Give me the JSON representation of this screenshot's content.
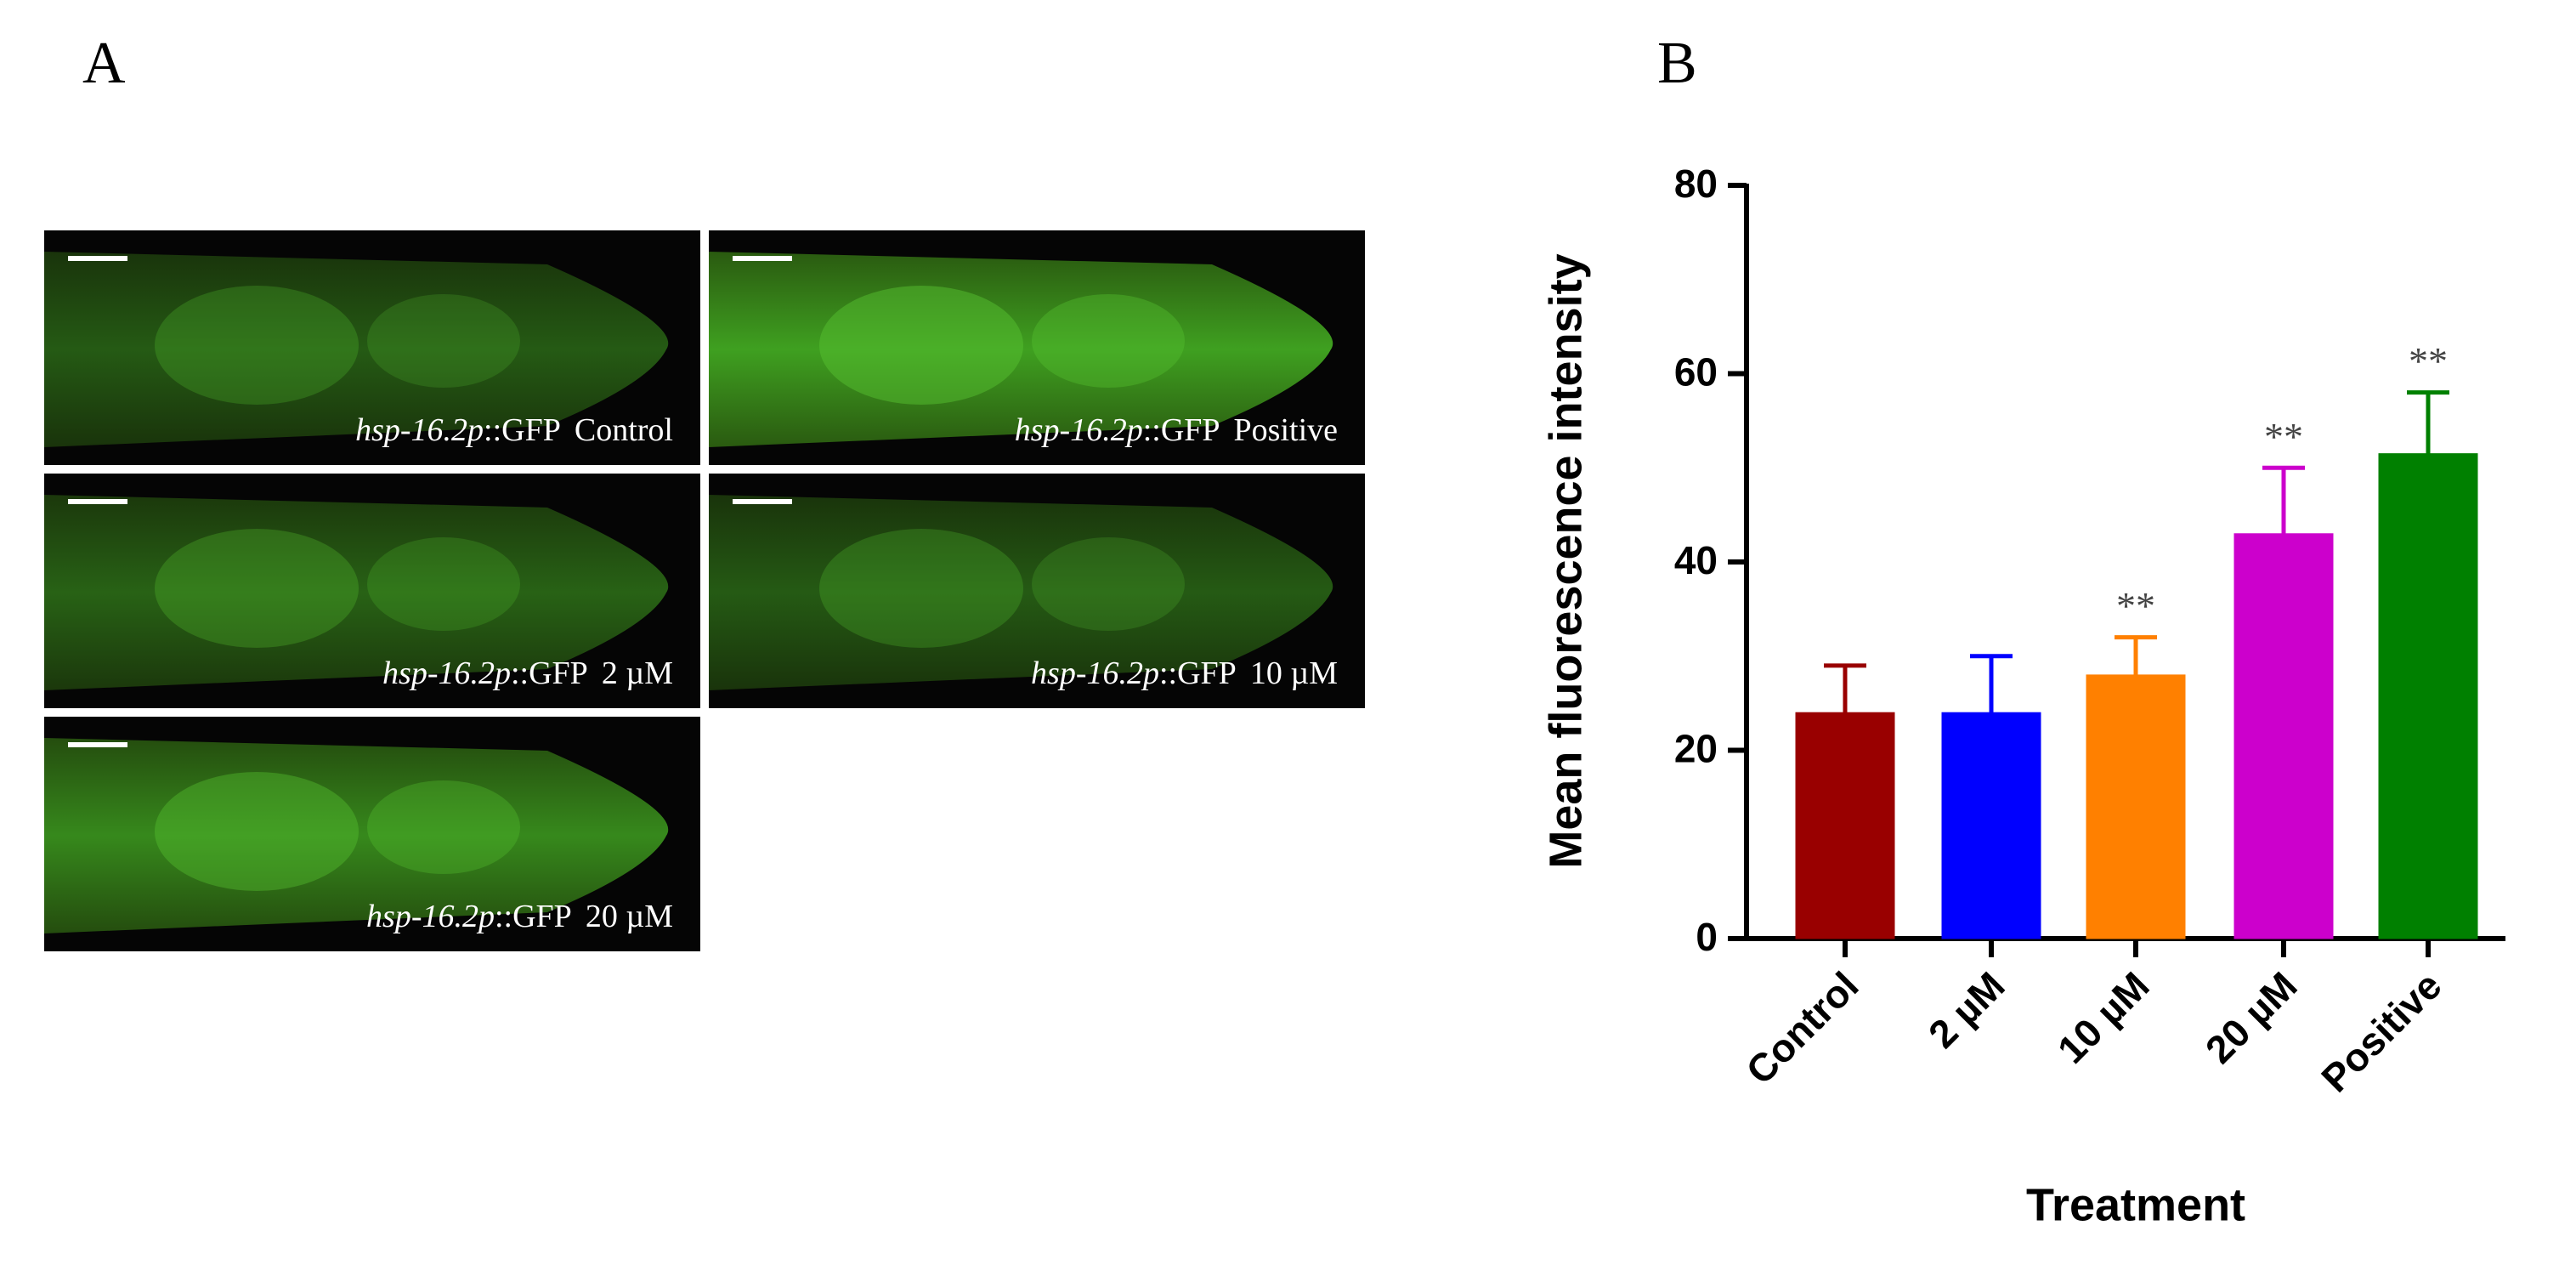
{
  "panel_a": {
    "label": "A",
    "images": [
      {
        "gene": "hsp-16.2p",
        "reporter": "::GFP",
        "condition": "Control"
      },
      {
        "gene": "hsp-16.2p",
        "reporter": "::GFP",
        "condition": "Positive"
      },
      {
        "gene": "hsp-16.2p",
        "reporter": "::GFP",
        "condition": "2 µM"
      },
      {
        "gene": "hsp-16.2p",
        "reporter": "::GFP",
        "condition": "10 µM"
      },
      {
        "gene": "hsp-16.2p",
        "reporter": "::GFP",
        "condition": "20 µM"
      }
    ]
  },
  "chart_data": {
    "type": "bar",
    "panel_label": "B",
    "x_label": "Treatment",
    "y_label": "Mean fluorescence intensity",
    "categories": [
      "Control",
      "2 µM",
      "10 µM",
      "20 µM",
      "Positive"
    ],
    "values": [
      24,
      24,
      28,
      43,
      51.5
    ],
    "errors": [
      5,
      6,
      4,
      7,
      6.5
    ],
    "significance": [
      null,
      null,
      "**",
      "**",
      "**"
    ],
    "colors": [
      "#990000",
      "#0000ff",
      "#ff8000",
      "#cc00cc",
      "#008000"
    ],
    "ylim": [
      0,
      80
    ],
    "yticks": [
      0,
      20,
      40,
      60,
      80
    ],
    "grid": false
  }
}
